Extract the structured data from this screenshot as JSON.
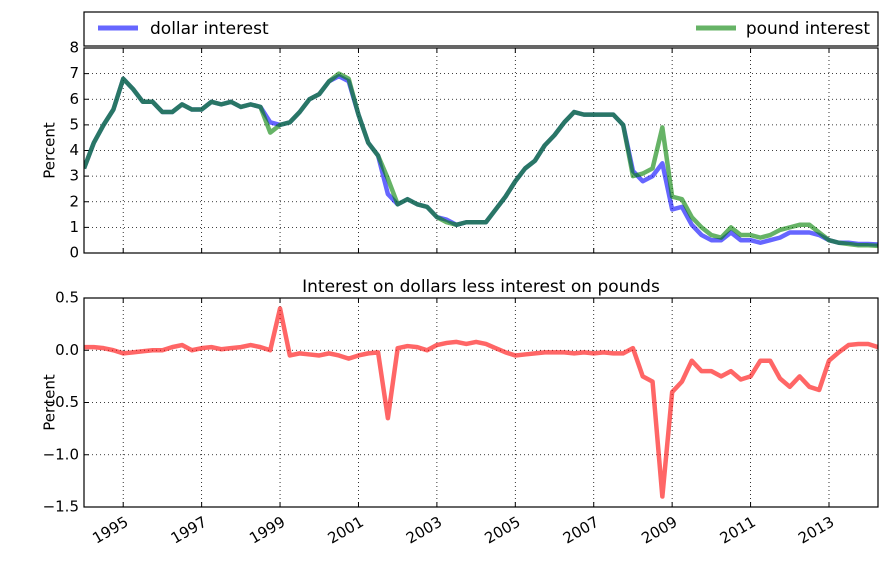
{
  "chart_data": [
    {
      "type": "line",
      "ylabel": "Percent",
      "legend": "top",
      "grid": true,
      "x": [
        1994,
        1994.25,
        1994.5,
        1994.75,
        1995,
        1995.25,
        1995.5,
        1995.75,
        1996,
        1996.25,
        1996.5,
        1996.75,
        1997,
        1997.25,
        1997.5,
        1997.75,
        1998,
        1998.25,
        1998.5,
        1998.75,
        1999,
        1999.25,
        1999.5,
        1999.75,
        2000,
        2000.25,
        2000.5,
        2000.75,
        2001,
        2001.25,
        2001.5,
        2001.75,
        2002,
        2002.25,
        2002.5,
        2002.75,
        2003,
        2003.25,
        2003.5,
        2003.75,
        2004,
        2004.25,
        2004.5,
        2004.75,
        2005,
        2005.25,
        2005.5,
        2005.75,
        2006,
        2006.25,
        2006.5,
        2006.75,
        2007,
        2007.25,
        2007.5,
        2007.75,
        2008,
        2008.25,
        2008.5,
        2008.75,
        2009,
        2009.25,
        2009.5,
        2009.75,
        2010,
        2010.25,
        2010.5,
        2010.75,
        2011,
        2011.25,
        2011.5,
        2011.75,
        2012,
        2012.25,
        2012.5,
        2012.75,
        2013,
        2013.25,
        2013.5,
        2013.75,
        2014,
        2014.25
      ],
      "series": [
        {
          "name": "dollar interest",
          "color": "#0000ff",
          "values": [
            3.3,
            4.3,
            5.0,
            5.6,
            6.8,
            6.4,
            5.9,
            5.9,
            5.5,
            5.5,
            5.8,
            5.6,
            5.6,
            5.9,
            5.8,
            5.9,
            5.7,
            5.8,
            5.7,
            5.1,
            5.0,
            5.1,
            5.5,
            6.0,
            6.2,
            6.7,
            6.9,
            6.7,
            5.4,
            4.3,
            3.8,
            2.3,
            1.9,
            2.1,
            1.9,
            1.8,
            1.4,
            1.3,
            1.1,
            1.2,
            1.2,
            1.2,
            1.7,
            2.2,
            2.8,
            3.3,
            3.6,
            4.2,
            4.6,
            5.1,
            5.5,
            5.4,
            5.4,
            5.4,
            5.4,
            5.0,
            3.2,
            2.8,
            3.0,
            3.5,
            1.7,
            1.8,
            1.1,
            0.7,
            0.5,
            0.5,
            0.8,
            0.5,
            0.5,
            0.4,
            0.5,
            0.6,
            0.8,
            0.8,
            0.8,
            0.7,
            0.5,
            0.4,
            0.4,
            0.35,
            0.35,
            0.33
          ]
        },
        {
          "name": "pound interest",
          "color": "#008000",
          "values": [
            3.3,
            4.3,
            5.0,
            5.6,
            6.8,
            6.4,
            5.9,
            5.9,
            5.5,
            5.5,
            5.8,
            5.6,
            5.6,
            5.9,
            5.8,
            5.9,
            5.7,
            5.8,
            5.7,
            4.7,
            5.0,
            5.1,
            5.5,
            6.0,
            6.2,
            6.7,
            7.0,
            6.8,
            5.4,
            4.3,
            3.8,
            2.9,
            1.9,
            2.1,
            1.9,
            1.8,
            1.4,
            1.2,
            1.1,
            1.2,
            1.2,
            1.2,
            1.7,
            2.2,
            2.8,
            3.3,
            3.6,
            4.2,
            4.6,
            5.1,
            5.5,
            5.4,
            5.4,
            5.4,
            5.4,
            5.0,
            3.0,
            3.1,
            3.3,
            4.9,
            2.2,
            2.1,
            1.4,
            1.0,
            0.7,
            0.6,
            1.0,
            0.7,
            0.7,
            0.6,
            0.7,
            0.9,
            1.0,
            1.1,
            1.1,
            0.8,
            0.5,
            0.4,
            0.35,
            0.3,
            0.3,
            0.28
          ]
        }
      ],
      "xlim": [
        1994,
        2014.25
      ],
      "xticks": [
        1995,
        1997,
        1999,
        2001,
        2003,
        2005,
        2007,
        2009,
        2011,
        2013
      ],
      "ylim": [
        0,
        8
      ],
      "yticks": [
        0,
        1,
        2,
        3,
        4,
        5,
        6,
        7,
        8
      ]
    },
    {
      "type": "line",
      "title": "Interest on dollars less interest on pounds",
      "ylabel": "Percent",
      "grid": true,
      "color": "#ff0000",
      "x": [
        1994,
        1994.25,
        1994.5,
        1994.75,
        1995,
        1995.25,
        1995.5,
        1995.75,
        1996,
        1996.25,
        1996.5,
        1996.75,
        1997,
        1997.25,
        1997.5,
        1997.75,
        1998,
        1998.25,
        1998.5,
        1998.75,
        1999,
        1999.25,
        1999.5,
        1999.75,
        2000,
        2000.25,
        2000.5,
        2000.75,
        2001,
        2001.25,
        2001.5,
        2001.75,
        2002,
        2002.25,
        2002.5,
        2002.75,
        2003,
        2003.25,
        2003.5,
        2003.75,
        2004,
        2004.25,
        2004.5,
        2004.75,
        2005,
        2005.25,
        2005.5,
        2005.75,
        2006,
        2006.25,
        2006.5,
        2006.75,
        2007,
        2007.25,
        2007.5,
        2007.75,
        2008,
        2008.25,
        2008.5,
        2008.75,
        2009,
        2009.25,
        2009.5,
        2009.75,
        2010,
        2010.25,
        2010.5,
        2010.75,
        2011,
        2011.25,
        2011.5,
        2011.75,
        2012,
        2012.25,
        2012.5,
        2012.75,
        2013,
        2013.25,
        2013.5,
        2013.75,
        2014,
        2014.25
      ],
      "values": [
        0.03,
        0.03,
        0.02,
        0.0,
        -0.03,
        -0.02,
        -0.01,
        0.0,
        0.0,
        0.03,
        0.05,
        0.0,
        0.02,
        0.03,
        0.01,
        0.02,
        0.03,
        0.05,
        0.03,
        0.0,
        0.4,
        -0.05,
        -0.03,
        -0.04,
        -0.05,
        -0.03,
        -0.05,
        -0.08,
        -0.05,
        -0.03,
        -0.02,
        -0.65,
        0.02,
        0.04,
        0.03,
        0.0,
        0.05,
        0.07,
        0.08,
        0.06,
        0.08,
        0.06,
        0.02,
        -0.02,
        -0.05,
        -0.04,
        -0.03,
        -0.02,
        -0.02,
        -0.02,
        -0.03,
        -0.02,
        -0.03,
        -0.02,
        -0.03,
        -0.03,
        0.02,
        -0.25,
        -0.3,
        -1.4,
        -0.4,
        -0.3,
        -0.1,
        -0.2,
        -0.2,
        -0.25,
        -0.2,
        -0.28,
        -0.25,
        -0.1,
        -0.1,
        -0.27,
        -0.35,
        -0.25,
        -0.35,
        -0.38,
        -0.1,
        -0.02,
        0.05,
        0.06,
        0.06,
        0.03
      ],
      "xlim": [
        1994,
        2014.25
      ],
      "xticks": [
        1995,
        1997,
        1999,
        2001,
        2003,
        2005,
        2007,
        2009,
        2011,
        2013
      ],
      "ylim": [
        -1.5,
        0.5
      ],
      "yticks": [
        {
          "value": -1.5,
          "label": "−1.5"
        },
        {
          "value": -1.0,
          "label": "−1.0"
        },
        {
          "value": -0.5,
          "label": "−0.5"
        },
        {
          "value": 0.0,
          "label": "0.0"
        },
        0.5
      ]
    }
  ]
}
